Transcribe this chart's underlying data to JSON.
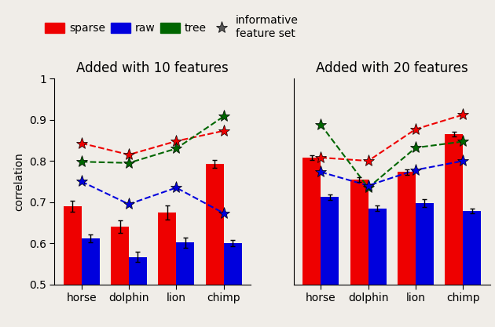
{
  "title_left": "Added with 10 features",
  "title_right": "Added with 20 features",
  "ylabel": "correlation",
  "categories": [
    "horse",
    "dolphin",
    "lion",
    "chimp"
  ],
  "ylim": [
    0.5,
    1.0
  ],
  "yticks": [
    0.5,
    0.6,
    0.7,
    0.8,
    0.9,
    1.0
  ],
  "ytick_labels": [
    "0.5",
    "0.6",
    "0.7",
    "0.8",
    "0.9",
    "1"
  ],
  "left": {
    "red_bars": [
      0.69,
      0.64,
      0.675,
      0.793
    ],
    "red_err": [
      0.013,
      0.015,
      0.017,
      0.01
    ],
    "blue_bars": [
      0.612,
      0.567,
      0.602,
      0.6
    ],
    "blue_err": [
      0.01,
      0.013,
      0.012,
      0.008
    ],
    "red_line": [
      0.843,
      0.815,
      0.848,
      0.873
    ],
    "green_line": [
      0.798,
      0.795,
      0.83,
      0.908
    ],
    "blue_line": [
      0.75,
      0.695,
      0.735,
      0.673
    ]
  },
  "right": {
    "red_bars": [
      0.808,
      0.755,
      0.773,
      0.865
    ],
    "red_err": [
      0.006,
      0.006,
      0.007,
      0.005
    ],
    "blue_bars": [
      0.712,
      0.685,
      0.698,
      0.678
    ],
    "blue_err": [
      0.007,
      0.007,
      0.01,
      0.006
    ],
    "red_line": [
      0.808,
      0.8,
      0.877,
      0.912
    ],
    "green_line": [
      0.888,
      0.735,
      0.832,
      0.847
    ],
    "blue_line": [
      0.773,
      0.74,
      0.778,
      0.8
    ]
  },
  "bar_width": 0.38,
  "red_color": "#ee0000",
  "blue_color": "#0000dd",
  "green_color": "#006600",
  "bg_color": "#f0ede8",
  "title_fontsize": 12,
  "label_fontsize": 10,
  "tick_fontsize": 10,
  "legend_fontsize": 10
}
